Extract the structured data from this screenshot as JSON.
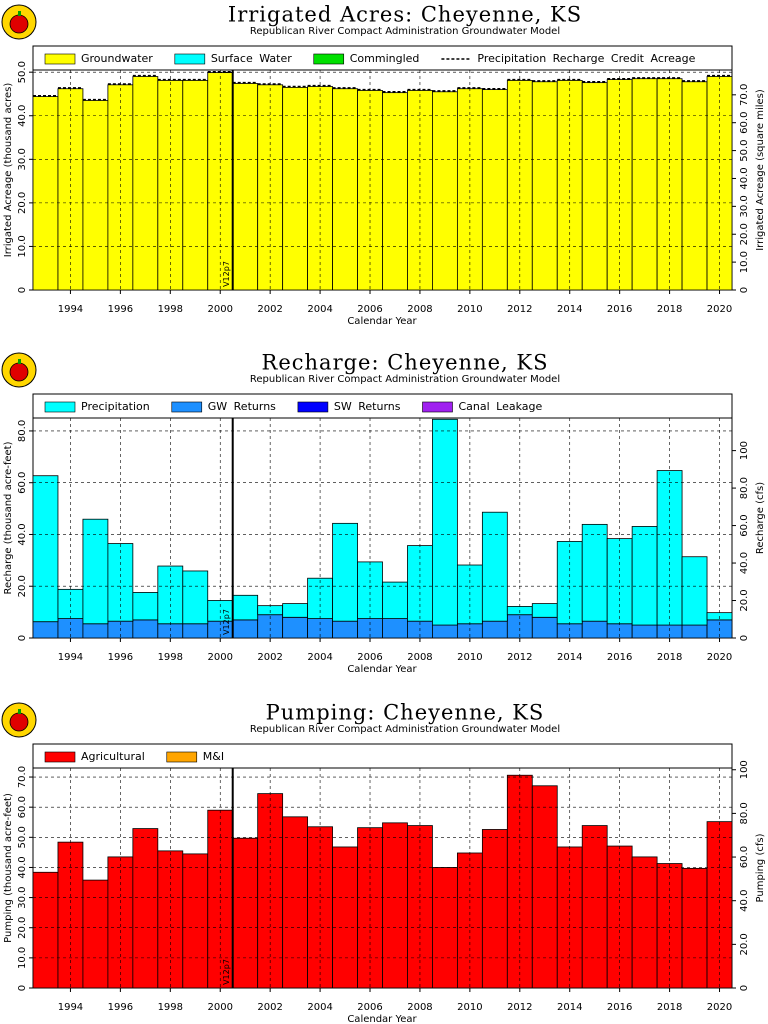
{
  "chart_data": [
    {
      "type": "bar",
      "title": "Irrigated Acres: Cheyenne, KS",
      "subtitle": "Republican River Compact Administration Groundwater Model",
      "xlabel": "Calendar Year",
      "ylabel": "Irrigated Acreage (thousand acres)",
      "y2label": "Irrigated Acreage (square miles)",
      "x": [
        1993,
        1994,
        1995,
        1996,
        1997,
        1998,
        1999,
        2000,
        2001,
        2002,
        2003,
        2004,
        2005,
        2006,
        2007,
        2008,
        2009,
        2010,
        2011,
        2012,
        2013,
        2014,
        2015,
        2016,
        2017,
        2018,
        2019,
        2020
      ],
      "series": [
        {
          "name": "Groundwater",
          "color": "#ffff00",
          "values": [
            44.4,
            46.2,
            43.5,
            47.1,
            49.0,
            48.1,
            48.1,
            49.9,
            47.4,
            47.1,
            46.5,
            46.7,
            46.2,
            45.8,
            45.3,
            45.8,
            45.5,
            46.2,
            46.0,
            48.1,
            47.8,
            48.1,
            47.6,
            48.3,
            48.5,
            48.5,
            47.8,
            49.0
          ]
        },
        {
          "name": "Surface Water",
          "color": "#00ffff",
          "values": [
            0,
            0,
            0,
            0,
            0,
            0,
            0,
            0,
            0,
            0,
            0,
            0,
            0,
            0,
            0,
            0,
            0,
            0,
            0,
            0,
            0,
            0,
            0,
            0,
            0,
            0,
            0,
            0
          ]
        },
        {
          "name": "Commingled",
          "color": "#00e000",
          "values": [
            0,
            0,
            0,
            0,
            0,
            0,
            0,
            0,
            0,
            0,
            0,
            0,
            0,
            0,
            0,
            0,
            0,
            0,
            0,
            0,
            0,
            0,
            0,
            0,
            0,
            0,
            0,
            0
          ]
        },
        {
          "name": "Precipitation Recharge Credit Acreage",
          "color": "#000000",
          "style": "dashed",
          "values": [
            44.6,
            46.4,
            43.7,
            47.3,
            49.2,
            48.3,
            48.3,
            50.1,
            47.6,
            47.3,
            46.7,
            46.9,
            46.4,
            46.0,
            45.5,
            46.0,
            45.7,
            46.4,
            46.2,
            48.3,
            48.0,
            48.3,
            47.8,
            48.5,
            48.7,
            48.7,
            48.0,
            49.2
          ]
        }
      ],
      "xlim": [
        1992.5,
        2020.5
      ],
      "xticks": [
        1994,
        1996,
        1998,
        2000,
        2002,
        2004,
        2006,
        2008,
        2010,
        2012,
        2014,
        2016,
        2018,
        2020
      ],
      "ylim": [
        0,
        50.5
      ],
      "yticks": [
        0,
        {
          "value": 10,
          "label": "10.0"
        },
        {
          "value": 20,
          "label": "20.0"
        },
        {
          "value": 30,
          "label": "30.0"
        },
        {
          "value": 40,
          "label": "40.0"
        },
        {
          "value": 50,
          "label": "50.0"
        }
      ],
      "y2lim": [
        0,
        78.9
      ],
      "y2ticks": [
        0,
        {
          "value": 10,
          "label": "10.0"
        },
        {
          "value": 20,
          "label": "20.0"
        },
        {
          "value": 30,
          "label": "30.0"
        },
        {
          "value": 40,
          "label": "40.0"
        },
        {
          "value": 50,
          "label": "50.0"
        },
        {
          "value": 60,
          "label": "60.0"
        },
        {
          "value": 70,
          "label": "70.0"
        }
      ],
      "grid": true,
      "annotation": {
        "text": "V12p7",
        "x": 2000.5
      }
    },
    {
      "type": "bar",
      "title": "Recharge: Cheyenne, KS",
      "subtitle": "Republican River Compact Administration Groundwater Model",
      "xlabel": "Calendar Year",
      "ylabel": "Recharge (thousand acre-feet)",
      "y2label": "Recharge (cfs)",
      "x": [
        1993,
        1994,
        1995,
        1996,
        1997,
        1998,
        1999,
        2000,
        2001,
        2002,
        2003,
        2004,
        2005,
        2006,
        2007,
        2008,
        2009,
        2010,
        2011,
        2012,
        2013,
        2014,
        2015,
        2016,
        2017,
        2018,
        2019,
        2020
      ],
      "series": [
        {
          "name": "Precipitation",
          "color": "#00ffff",
          "values": [
            56.4,
            11.3,
            40.4,
            30.0,
            10.6,
            22.3,
            20.4,
            8.0,
            9.5,
            3.5,
            5.3,
            15.6,
            37.8,
            21.9,
            14.1,
            29.2,
            79.5,
            22.7,
            42.1,
            3.2,
            5.3,
            31.8,
            37.4,
            32.9,
            38.1,
            59.7,
            26.4,
            2.8
          ]
        },
        {
          "name": "GW Returns",
          "color": "#1e90ff",
          "values": [
            6.3,
            7.5,
            5.5,
            6.5,
            7.0,
            5.5,
            5.5,
            6.5,
            7.0,
            9.0,
            8.0,
            7.5,
            6.5,
            7.5,
            7.5,
            6.5,
            5.0,
            5.5,
            6.5,
            9.0,
            8.0,
            5.5,
            6.5,
            5.5,
            5.0,
            5.0,
            5.0,
            7.0
          ]
        },
        {
          "name": "SW Returns",
          "color": "#0000ff",
          "values": [
            0,
            0,
            0,
            0,
            0,
            0,
            0,
            0,
            0,
            0,
            0,
            0,
            0,
            0,
            0,
            0,
            0,
            0,
            0,
            0,
            0,
            0,
            0,
            0,
            0,
            0,
            0,
            0
          ]
        },
        {
          "name": "Canal Leakage",
          "color": "#a020f0",
          "values": [
            0,
            0,
            0,
            0,
            0,
            0,
            0,
            0,
            0,
            0,
            0,
            0,
            0,
            0,
            0,
            0,
            0,
            0,
            0,
            0,
            0,
            0,
            0,
            0,
            0,
            0,
            0,
            0
          ]
        }
      ],
      "stack_order": [
        1,
        0,
        2,
        3
      ],
      "xlim": [
        1992.5,
        2020.5
      ],
      "xticks": [
        1994,
        1996,
        1998,
        2000,
        2002,
        2004,
        2006,
        2008,
        2010,
        2012,
        2014,
        2016,
        2018,
        2020
      ],
      "ylim": [
        0,
        85
      ],
      "yticks": [
        0,
        {
          "value": 20,
          "label": "20.0"
        },
        {
          "value": 40,
          "label": "40.0"
        },
        {
          "value": 60,
          "label": "60.0"
        },
        {
          "value": 80,
          "label": "80.0"
        }
      ],
      "y2lim": [
        0,
        117.4
      ],
      "y2ticks": [
        0,
        {
          "value": 20,
          "label": "20.0"
        },
        {
          "value": 40,
          "label": "40.0"
        },
        {
          "value": 60,
          "label": "60.0"
        },
        {
          "value": 80,
          "label": "80.0"
        },
        100
      ],
      "grid": true,
      "annotation": {
        "text": "V12p7",
        "x": 2000.5
      }
    },
    {
      "type": "bar",
      "title": "Pumping: Cheyenne, KS",
      "subtitle": "Republican River Compact Administration Groundwater Model",
      "xlabel": "Calendar Year",
      "ylabel": "Pumping (thousand acre-feet)",
      "y2label": "Pumping (cfs)",
      "x": [
        1993,
        1994,
        1995,
        1996,
        1997,
        1998,
        1999,
        2000,
        2001,
        2002,
        2003,
        2004,
        2005,
        2006,
        2007,
        2008,
        2009,
        2010,
        2011,
        2012,
        2013,
        2014,
        2015,
        2016,
        2017,
        2018,
        2019,
        2020
      ],
      "series": [
        {
          "name": "Agricultural",
          "color": "#ff0000",
          "values": [
            38.4,
            48.4,
            35.8,
            43.5,
            52.9,
            45.5,
            44.5,
            59.0,
            49.7,
            64.5,
            56.8,
            53.5,
            46.8,
            53.2,
            54.8,
            53.9,
            40.0,
            44.8,
            52.6,
            70.6,
            67.1,
            46.8,
            53.9,
            47.1,
            43.5,
            41.3,
            39.7,
            55.2
          ]
        },
        {
          "name": "M&I",
          "color": "#ffa500",
          "values": [
            0,
            0,
            0,
            0,
            0,
            0,
            0,
            0,
            0,
            0,
            0,
            0,
            0,
            0,
            0,
            0,
            0,
            0,
            0,
            0,
            0,
            0,
            0,
            0,
            0,
            0,
            0,
            0
          ]
        }
      ],
      "xlim": [
        1992.5,
        2020.5
      ],
      "xticks": [
        1994,
        1996,
        1998,
        2000,
        2002,
        2004,
        2006,
        2008,
        2010,
        2012,
        2014,
        2016,
        2018,
        2020
      ],
      "ylim": [
        0,
        73
      ],
      "yticks": [
        0,
        {
          "value": 10,
          "label": "10.0"
        },
        {
          "value": 20,
          "label": "20.0"
        },
        {
          "value": 30,
          "label": "30.0"
        },
        {
          "value": 40,
          "label": "40.0"
        },
        {
          "value": 50,
          "label": "50.0"
        },
        {
          "value": 60,
          "label": "60.0"
        },
        {
          "value": 70,
          "label": "70.0"
        }
      ],
      "y2lim": [
        0,
        100.8
      ],
      "y2ticks": [
        0,
        {
          "value": 20,
          "label": "20.0"
        },
        {
          "value": 40,
          "label": "40.0"
        },
        {
          "value": 60,
          "label": "60.0"
        },
        {
          "value": 80,
          "label": "80.0"
        },
        100
      ],
      "grid": true,
      "annotation": {
        "text": "V12p7",
        "x": 2000.5
      }
    }
  ]
}
